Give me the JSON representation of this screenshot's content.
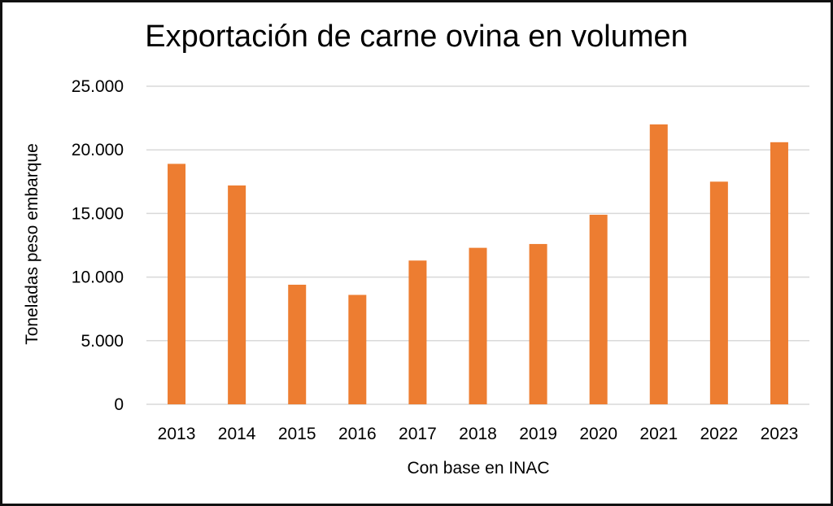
{
  "chart_data": {
    "type": "bar",
    "title": "Exportación de carne ovina en volumen",
    "xlabel": "Con base en INAC",
    "ylabel": "Toneladas peso embarque",
    "categories": [
      "2013",
      "2014",
      "2015",
      "2016",
      "2017",
      "2018",
      "2019",
      "2020",
      "2021",
      "2022",
      "2023"
    ],
    "values": [
      18900,
      17200,
      9400,
      8600,
      11300,
      12300,
      12600,
      14900,
      22000,
      17500,
      20600
    ],
    "ylim": [
      0,
      25000
    ],
    "yticks": [
      0,
      5000,
      10000,
      15000,
      20000,
      25000
    ],
    "ytick_labels": [
      "0",
      "5.000",
      "10.000",
      "15.000",
      "20.000",
      "25.000"
    ],
    "grid": true,
    "bar_color": "#ED7D31",
    "grid_color": "#D9D9D9"
  }
}
